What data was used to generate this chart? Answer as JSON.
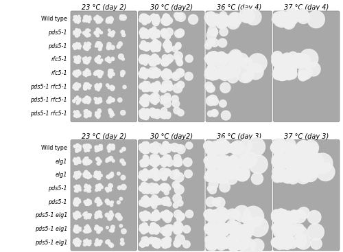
{
  "top_panel": {
    "col_labels": [
      "23 °C (day 2)",
      "30 °C (day2)",
      "36 °C (day 4)",
      "37 °C (day 4)"
    ],
    "row_labels": [
      "Wild type",
      "pds5-1",
      "pds5-1",
      "rfc5-1",
      "rfc5-1",
      "pds5-1 rfc5-1",
      "pds5-1 rfc5-1",
      "pds5-1 rfc5-1"
    ],
    "row_labels_italic": [
      false,
      true,
      true,
      true,
      true,
      true,
      true,
      true
    ]
  },
  "bottom_panel": {
    "col_labels": [
      "23 °C (day 2)",
      "30 °C (day2)",
      "36 °C (day 3)",
      "37 °C (day 3)"
    ],
    "row_labels": [
      "Wild type",
      "elg1",
      "elg1",
      "pds5-1",
      "pds5-1",
      "pds5-1 elg1",
      "pds5-1 elg1",
      "pds5-1 elg1"
    ],
    "row_labels_italic": [
      false,
      true,
      true,
      true,
      true,
      true,
      true,
      true
    ]
  },
  "fig_bg": "#ffffff",
  "plate_bg": "#a8a8a8",
  "border_color": "#888888",
  "colony_color": "#f0f0f0",
  "col_label_fontsize": 7.0,
  "row_label_fontsize": 5.8
}
